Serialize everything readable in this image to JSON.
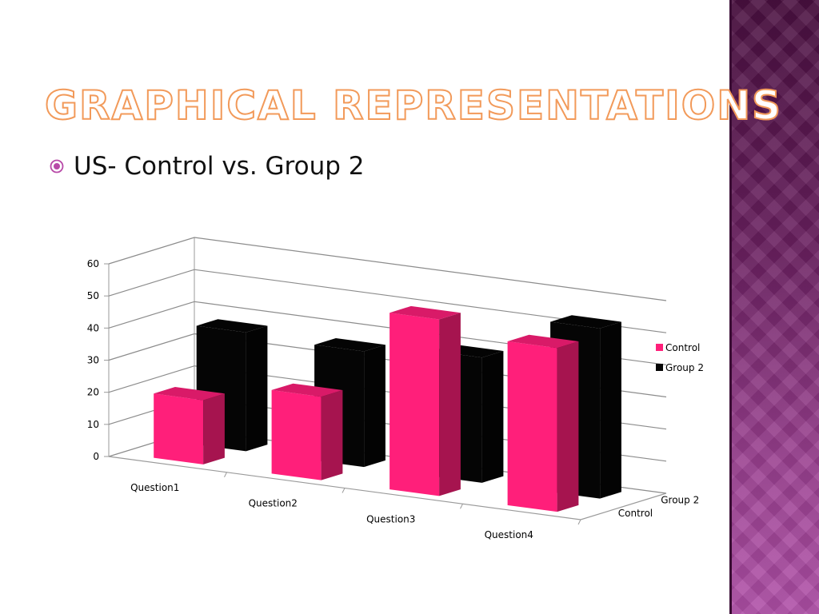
{
  "slide": {
    "title": "Graphical Representations",
    "bullet": "US- Control vs. Group 2"
  },
  "colors": {
    "accent_title": "#f29a5a",
    "bullet_icon": "#b84aa8",
    "control": "#ff1f7a",
    "group2": "#050505",
    "sidebar_top": "#4a1040",
    "sidebar_bottom": "#b050a8"
  },
  "chart_data": {
    "type": "bar",
    "style": "3d-clustered-column",
    "categories": [
      "Question1",
      "Question2",
      "Question3",
      "Question4"
    ],
    "series": [
      {
        "name": "Control",
        "values": [
          20,
          26,
          55,
          51
        ],
        "color": "#ff1f7a"
      },
      {
        "name": "Group 2",
        "values": [
          37,
          36,
          39,
          53
        ],
        "color": "#050505"
      }
    ],
    "depth_labels": [
      "Control",
      "Group 2"
    ],
    "yticks": [
      0,
      10,
      20,
      30,
      40,
      50,
      60
    ],
    "ylim": [
      0,
      60
    ],
    "grid": true,
    "legend_position": "right"
  }
}
